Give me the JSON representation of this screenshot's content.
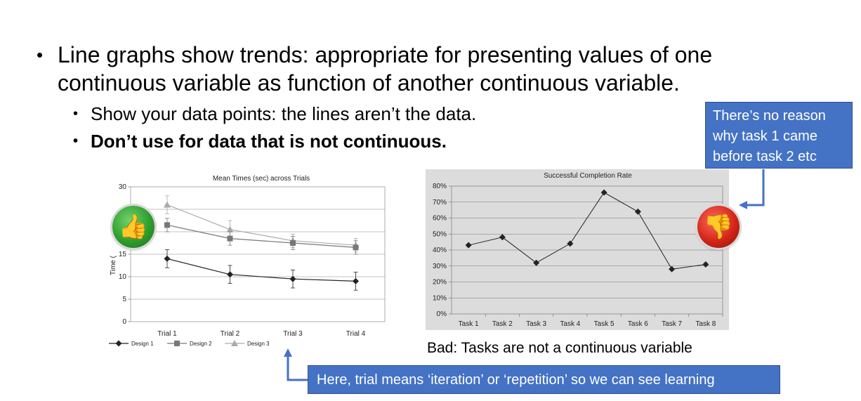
{
  "slide": {
    "bullet_main": "Line graphs show trends: appropriate for presenting values of one continuous variable as function of another continuous variable.",
    "sub_bullet_1": "Show your data points: the lines aren’t the data.",
    "sub_bullet_2": "Don’t use for data that is not continuous.",
    "callout_reason": "There’s no reason why task 1 came before task 2 etc",
    "callout_trial": "Here, trial means ‘iteration’ or ‘repetition’ so we can see learning",
    "caption_bad": "Bad: Tasks are not a continuous variable",
    "bullet_glyph": "•",
    "icons": {
      "good": "thumbs-up-icon",
      "bad": "thumbs-down-icon"
    },
    "colors": {
      "callout": "#4472c4",
      "good_badge": "#2f9e2f",
      "bad_badge": "#d42618"
    }
  },
  "chart_data": [
    {
      "type": "line",
      "title": "Mean Times (sec) across Trials",
      "ylabel": "Time (",
      "xlabel": "",
      "categories": [
        "Trial 1",
        "Trial 2",
        "Trial 3",
        "Trial 4"
      ],
      "ylim": [
        0,
        30
      ],
      "yticks": [
        0,
        5,
        10,
        15,
        30
      ],
      "grid": true,
      "legend": "bottom",
      "error_bars": true,
      "series": [
        {
          "name": "Design 1",
          "values": [
            14,
            10.5,
            9.5,
            9
          ],
          "error": [
            2,
            2,
            2,
            2
          ],
          "marker": "diamond",
          "color": "#222222"
        },
        {
          "name": "Design 2",
          "values": [
            21.5,
            18.5,
            17.5,
            16.5
          ],
          "error": [
            1.5,
            1.5,
            1.5,
            1.5
          ],
          "marker": "square",
          "color": "#777777"
        },
        {
          "name": "Design 3",
          "values": [
            26,
            20.5,
            18,
            17
          ],
          "error": [
            2,
            2,
            1.5,
            1.5
          ],
          "marker": "triangle",
          "color": "#aaaaaa"
        }
      ]
    },
    {
      "type": "line",
      "title": "Successful Completion Rate",
      "xlabel": "",
      "ylabel": "",
      "categories": [
        "Task 1",
        "Task 2",
        "Task 3",
        "Task 4",
        "Task 5",
        "Task 6",
        "Task 7",
        "Task 8"
      ],
      "ylim": [
        0,
        80
      ],
      "yticks": [
        "0%",
        "10%",
        "20%",
        "30%",
        "40%",
        "50%",
        "60%",
        "70%",
        "80%"
      ],
      "grid": true,
      "series": [
        {
          "values": [
            43,
            48,
            32,
            44,
            76,
            64,
            28,
            31
          ],
          "color": "#222222"
        }
      ]
    }
  ]
}
